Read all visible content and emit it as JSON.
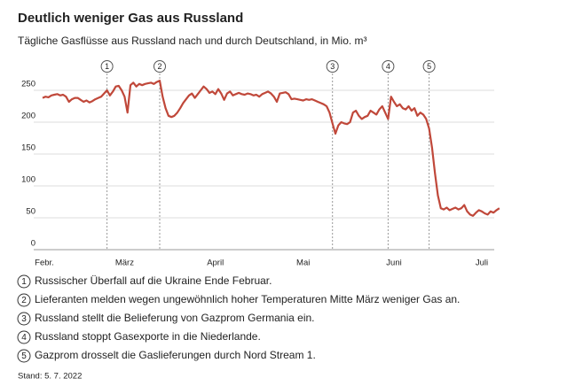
{
  "chart_data": {
    "type": "line",
    "title": "Deutlich weniger Gas aus Russland",
    "subtitle": "Tägliche Gasflüsse aus Russland nach und durch Deutschland, in Mio. m³",
    "color": "#c0483a",
    "grid": true,
    "ylim": [
      0,
      270
    ],
    "yticks": [
      0,
      50,
      100,
      150,
      200,
      250
    ],
    "categories": [
      "Febr.",
      null,
      null,
      null,
      null,
      null,
      null,
      null,
      null,
      null,
      null,
      null,
      null,
      null,
      null,
      null,
      null,
      null,
      null,
      null,
      null,
      null,
      null,
      null,
      null,
      null,
      null,
      null,
      "März",
      null,
      null,
      null,
      null,
      null,
      null,
      null,
      null,
      null,
      null,
      null,
      null,
      null,
      null,
      null,
      null,
      null,
      null,
      null,
      null,
      null,
      null,
      null,
      null,
      null,
      null,
      null,
      null,
      null,
      null,
      "April",
      null,
      null,
      null,
      null,
      null,
      null,
      null,
      null,
      null,
      null,
      null,
      null,
      null,
      null,
      null,
      null,
      null,
      null,
      null,
      null,
      null,
      null,
      null,
      null,
      null,
      null,
      null,
      null,
      null,
      "Mai",
      null,
      null,
      null,
      null,
      null,
      null,
      null,
      null,
      null,
      null,
      null,
      null,
      null,
      null,
      null,
      null,
      null,
      null,
      null,
      null,
      null,
      null,
      null,
      null,
      null,
      null,
      null,
      null,
      null,
      null,
      "Juni",
      null,
      null,
      null,
      null,
      null,
      null,
      null,
      null,
      null,
      null,
      null,
      null,
      null,
      null,
      null,
      null,
      null,
      null,
      null,
      null,
      null,
      null,
      null,
      null,
      null,
      null,
      null,
      null,
      null,
      "Juli",
      null,
      null,
      null,
      null,
      null,
      null
    ],
    "values": [
      238,
      240,
      239,
      242,
      243,
      244,
      242,
      243,
      240,
      232,
      236,
      238,
      238,
      235,
      232,
      234,
      231,
      233,
      236,
      238,
      240,
      245,
      250,
      242,
      248,
      256,
      257,
      250,
      240,
      215,
      258,
      262,
      256,
      260,
      258,
      260,
      261,
      262,
      260,
      263,
      265,
      240,
      222,
      210,
      208,
      210,
      215,
      222,
      230,
      236,
      242,
      245,
      238,
      244,
      250,
      256,
      252,
      246,
      248,
      244,
      252,
      245,
      235,
      245,
      248,
      242,
      244,
      246,
      244,
      243,
      245,
      244,
      242,
      243,
      240,
      244,
      246,
      248,
      245,
      240,
      232,
      245,
      246,
      247,
      244,
      236,
      237,
      236,
      235,
      234,
      236,
      235,
      236,
      234,
      232,
      230,
      228,
      225,
      215,
      198,
      182,
      195,
      200,
      198,
      197,
      200,
      215,
      218,
      210,
      205,
      208,
      210,
      218,
      215,
      212,
      220,
      225,
      215,
      205,
      240,
      232,
      225,
      228,
      222,
      220,
      225,
      218,
      222,
      210,
      215,
      212,
      205,
      190,
      160,
      120,
      85,
      65,
      63,
      66,
      62,
      64,
      66,
      63,
      65,
      70,
      60,
      55,
      53,
      58,
      62,
      60,
      57,
      55,
      60,
      58,
      62,
      65
    ],
    "annotations": [
      {
        "marker": "1",
        "text": "Russischer Überfall auf die Ukraine Ende Februar."
      },
      {
        "marker": "2",
        "text": "Lieferanten melden wegen ungewöhnlich hoher Temperaturen Mitte März weniger Gas an."
      },
      {
        "marker": "3",
        "text": "Russland stellt die Belieferung von Gazprom Germania ein."
      },
      {
        "marker": "4",
        "text": "Russland stoppt Gasexporte in die Niederlande."
      },
      {
        "marker": "5",
        "text": "Gazprom drosselt die Gaslieferungen durch Nord Stream 1."
      }
    ],
    "footnote": "Stand: 5. 7. 2022"
  }
}
